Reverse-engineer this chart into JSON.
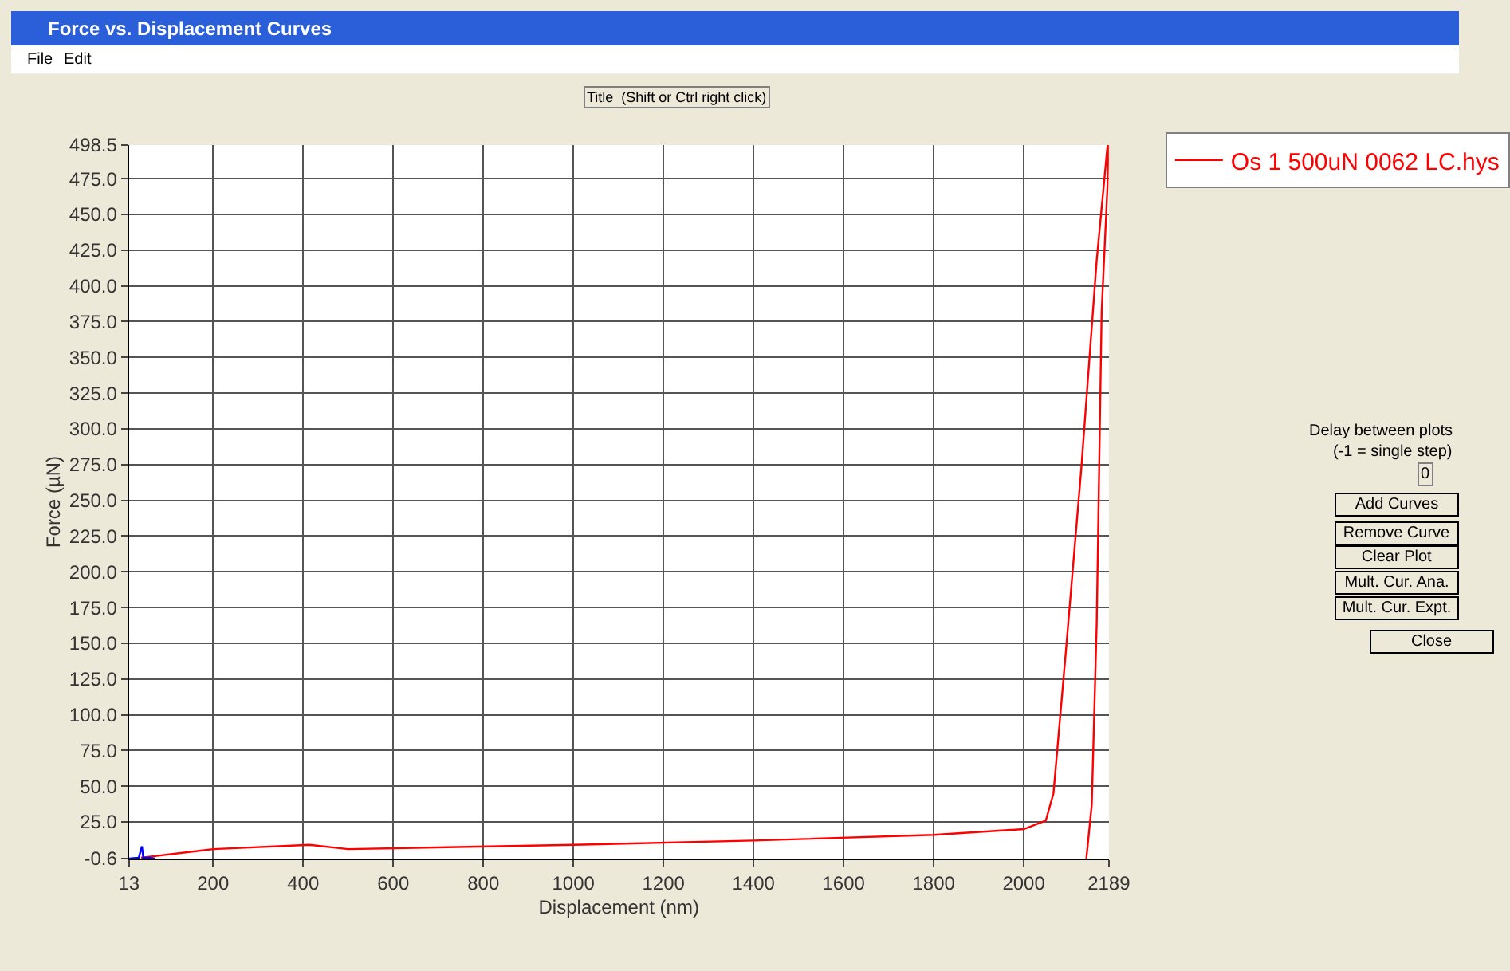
{
  "chart_data": {
    "type": "line",
    "title": "Force vs. Displacement Curves",
    "xlabel": "Displacement (nm)",
    "ylabel": "Force (µN)",
    "series": [
      {
        "name": "Os 1 500uN 0062 LC.hys",
        "color": "#ff0000",
        "x": [
          40,
          200,
          414,
          500,
          1000,
          1400,
          1800,
          2000,
          2049,
          2066,
          2094,
          2128,
          2162,
          2186,
          2188,
          2186,
          2173,
          2162,
          2151,
          2139
        ],
        "values": [
          0,
          6,
          9,
          6,
          9,
          12,
          16,
          20,
          26,
          45,
          146,
          273,
          418,
          498,
          498.5,
          470,
          382,
          164,
          37,
          -0.6
        ]
      },
      {
        "color": "#0000ff",
        "x": [
          13,
          35,
          42,
          45,
          60,
          70
        ],
        "values": [
          -0.6,
          0,
          8,
          0,
          0,
          -0.6
        ]
      }
    ],
    "xlim": [
      13,
      2189
    ],
    "ylim": [
      -0.6,
      498.5
    ],
    "xticks": [
      13,
      200,
      400,
      600,
      800,
      1000,
      1200,
      1400,
      1600,
      1800,
      2000,
      2189
    ],
    "yticks": [
      {
        "value": -0.6,
        "label": "-0.6"
      },
      {
        "value": 25,
        "label": "25.0"
      },
      {
        "value": 50,
        "label": "50.0"
      },
      {
        "value": 75,
        "label": "75.0"
      },
      {
        "value": 100,
        "label": "100.0"
      },
      {
        "value": 125,
        "label": "125.0"
      },
      {
        "value": 150,
        "label": "150.0"
      },
      {
        "value": 175,
        "label": "175.0"
      },
      {
        "value": 200,
        "label": "200.0"
      },
      {
        "value": 225,
        "label": "225.0"
      },
      {
        "value": 250,
        "label": "250.0"
      },
      {
        "value": 275,
        "label": "275.0"
      },
      {
        "value": 300,
        "label": "300.0"
      },
      {
        "value": 325,
        "label": "325.0"
      },
      {
        "value": 350,
        "label": "350.0"
      },
      {
        "value": 375,
        "label": "375.0"
      },
      {
        "value": 400,
        "label": "400.0"
      },
      {
        "value": 425,
        "label": "425.0"
      },
      {
        "value": 450,
        "label": "450.0"
      },
      {
        "value": 475,
        "label": "475.0"
      },
      {
        "value": 498.5,
        "label": "498.5"
      }
    ],
    "grid": true,
    "legend": "top right",
    "marker": "none",
    "line_style": "solid",
    "annotations": [
      "File",
      "Edit",
      "Title  (Shift or Ctrl right click)",
      "Delay between plots",
      "(-1 = single step)",
      "0",
      "Add Curves",
      "Remove Curve",
      "Clear Plot",
      "Mult. Cur. Ana.",
      "Mult. Cur. Expt.",
      "Close"
    ]
  }
}
